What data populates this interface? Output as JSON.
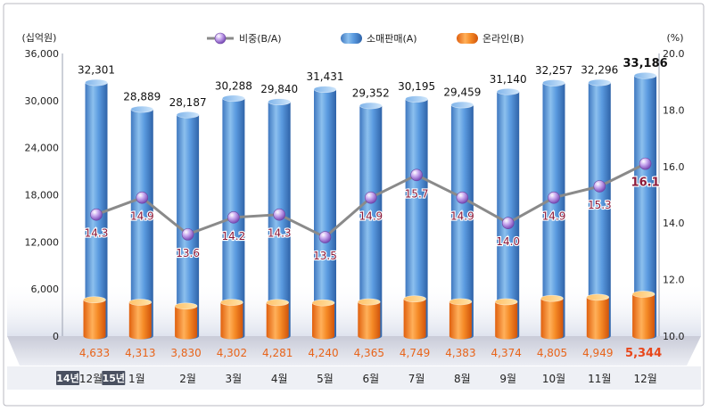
{
  "chart_data": {
    "type": "bar",
    "categories": [
      "12월",
      "1월",
      "2월",
      "3월",
      "4월",
      "5월",
      "6월",
      "7월",
      "8월",
      "9월",
      "10월",
      "11월",
      "12월"
    ],
    "year_badges": [
      {
        "index": 0,
        "label": "14년"
      },
      {
        "index": 1,
        "label": "15년"
      }
    ],
    "left_axis": {
      "unit_label": "(십억원)",
      "ylim": [
        0,
        36000
      ],
      "ticks": [
        0,
        6000,
        12000,
        18000,
        24000,
        30000,
        36000
      ],
      "tick_labels": [
        "0",
        "6,000",
        "12,000",
        "18,000",
        "24,000",
        "30,000",
        "36,000"
      ]
    },
    "right_axis": {
      "unit_label": "(%)",
      "ylim": [
        10.0,
        20.0
      ],
      "ticks": [
        10,
        12,
        14,
        16,
        18,
        20
      ],
      "tick_labels": [
        "10.0",
        "12.0",
        "14.0",
        "16.0",
        "18.0",
        "20.0"
      ]
    },
    "legend": [
      {
        "key": "ratio",
        "label": "비중(B/A)"
      },
      {
        "key": "retail",
        "label": "소매판매(A)"
      },
      {
        "key": "online",
        "label": "온라인(B)"
      }
    ],
    "series": [
      {
        "name": "소매판매(A)",
        "type": "bar",
        "axis": "left",
        "values": [
          32301,
          28889,
          28187,
          30288,
          29840,
          31431,
          29352,
          30195,
          29459,
          31140,
          32257,
          32296,
          33186
        ],
        "labels": [
          "32,301",
          "28,889",
          "28,187",
          "30,288",
          "29,840",
          "31,431",
          "29,352",
          "30,195",
          "29,459",
          "31,140",
          "32,257",
          "32,296",
          "33,186"
        ]
      },
      {
        "name": "온라인(B)",
        "type": "bar",
        "axis": "left",
        "values": [
          4633,
          4313,
          3830,
          4302,
          4281,
          4240,
          4365,
          4749,
          4383,
          4374,
          4805,
          4949,
          5344
        ],
        "labels": [
          "4,633",
          "4,313",
          "3,830",
          "4,302",
          "4,281",
          "4,240",
          "4,365",
          "4,749",
          "4,383",
          "4,374",
          "4,805",
          "4,949",
          "5,344"
        ]
      },
      {
        "name": "비중(B/A)",
        "type": "line",
        "axis": "right",
        "values": [
          14.3,
          14.9,
          13.6,
          14.2,
          14.3,
          13.5,
          14.9,
          15.7,
          14.9,
          14.0,
          14.9,
          15.3,
          16.1
        ],
        "labels": [
          "14.3",
          "14.9",
          "13.6",
          "14.2",
          "14.3",
          "13.5",
          "14.9",
          "15.7",
          "14.9",
          "14.0",
          "14.9",
          "15.3",
          "16.1"
        ]
      }
    ],
    "colors": {
      "retail": "#4f8fd6",
      "retail_light": "#9cc8f0",
      "online": "#f07a1a",
      "online_light": "#ffd08a",
      "ratio_line": "#8a8a8a",
      "ratio_marker": "#9a6fc9",
      "ratio_label": "#8b1a3a",
      "online_label": "#e8641a",
      "highlight_label": "#e8461a",
      "floor": "#d9dbe6",
      "badge_bg": "#4a5060"
    }
  }
}
